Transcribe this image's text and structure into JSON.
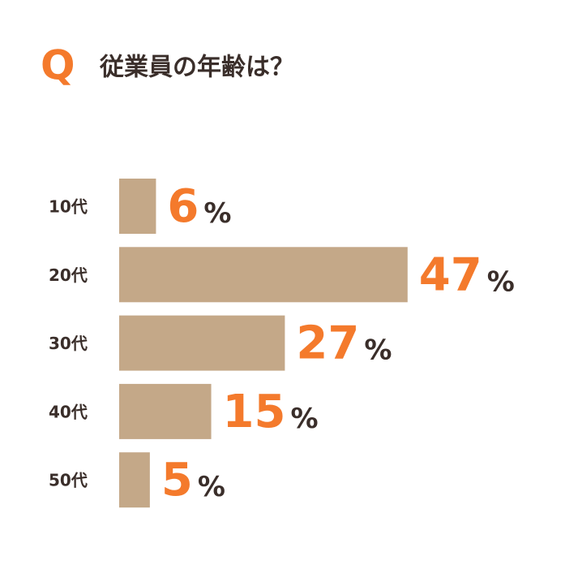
{
  "chart_data": {
    "type": "bar",
    "orientation": "horizontal",
    "title_prefix": "Q",
    "title": "従業員の年齢は？",
    "categories": [
      "10代",
      "20代",
      "30代",
      "40代",
      "50代"
    ],
    "values": [
      6,
      47,
      27,
      15,
      5
    ],
    "unit": "%",
    "color": "#c4a888",
    "label_color": "#f47a2c",
    "text_color": "#3a2e2a",
    "accent_color": "#f47a2c"
  }
}
